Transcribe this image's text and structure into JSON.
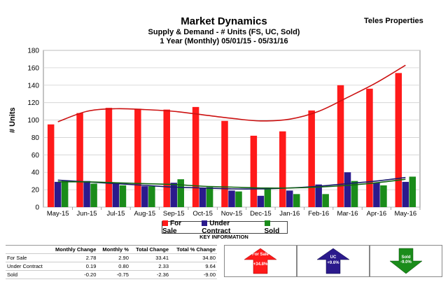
{
  "header": {
    "title": "Market Dynamics",
    "subtitle": "Supply & Demand - # Units (FS, UC, Sold)",
    "period": "1 Year (Monthly) 05/01/15 - 05/31/16",
    "brand": "Teles Properties"
  },
  "chart_data": {
    "type": "bar",
    "ylabel": "# Units",
    "ylim": [
      0,
      180
    ],
    "yticks": [
      0,
      20,
      40,
      60,
      80,
      100,
      120,
      140,
      160,
      180
    ],
    "grid": true,
    "categories": [
      "May-15",
      "Jun-15",
      "Jul-15",
      "Aug-15",
      "Sep-15",
      "Oct-15",
      "Nov-15",
      "Dec-15",
      "Jan-16",
      "Feb-16",
      "Mar-16",
      "Apr-16",
      "May-16"
    ],
    "series": [
      {
        "name": "For Sale",
        "color": "#ff1a1a",
        "values": [
          95,
          108,
          114,
          113,
          112,
          115,
          99,
          82,
          87,
          111,
          140,
          136,
          154
        ]
      },
      {
        "name": "Under Contract",
        "color": "#2b1a8c",
        "values": [
          29,
          30,
          28,
          24,
          28,
          22,
          19,
          13,
          19,
          26,
          40,
          28,
          29
        ]
      },
      {
        "name": "Sold",
        "color": "#1a8c1a",
        "values": [
          30,
          27,
          25,
          24,
          32,
          23,
          18,
          22,
          15,
          15,
          30,
          25,
          35
        ]
      }
    ],
    "trendlines": [
      {
        "series": "For Sale",
        "color": "#cc1111",
        "values": [
          98,
          110,
          113,
          112,
          110,
          106,
          102,
          99,
          101,
          110,
          126,
          143,
          163
        ]
      },
      {
        "series": "Under Contract",
        "color": "#1a1a6e",
        "values": [
          31,
          29,
          27,
          25,
          23,
          22,
          21,
          21,
          22,
          24,
          27,
          30,
          34
        ]
      },
      {
        "series": "Sold",
        "color": "#116611",
        "values": [
          29,
          29,
          28,
          27,
          26,
          24,
          23,
          22,
          22,
          23,
          25,
          28,
          32
        ]
      }
    ]
  },
  "legend": {
    "items": [
      {
        "label": "For Sale",
        "color": "#ff1a1a"
      },
      {
        "label": "Under Contract",
        "color": "#2b1a8c"
      },
      {
        "label": "Sold",
        "color": "#1a8c1a"
      }
    ]
  },
  "key_info": "KEY INFORMATION",
  "summary_table": {
    "headers": [
      "",
      "Monthly Change",
      "Monthly %",
      "Total Change",
      "Total % Change"
    ],
    "rows": [
      [
        "For Sale",
        "2.78",
        "2.90",
        "33.41",
        "34.80"
      ],
      [
        "Under Contract",
        "0.19",
        "0.80",
        "2.33",
        "9.64"
      ],
      [
        "Sold",
        "-0.20",
        "-0.75",
        "-2.36",
        "-9.00"
      ]
    ]
  },
  "indicators": [
    {
      "label": "For Sale",
      "value": "+34.8%",
      "direction": "up",
      "color": "#ff1a1a"
    },
    {
      "label": "UC",
      "value": "+9.6%",
      "direction": "up",
      "color": "#2b1a8c"
    },
    {
      "label": "Sold",
      "value": "-9.0%",
      "direction": "down",
      "color": "#1a8c1a"
    }
  ]
}
